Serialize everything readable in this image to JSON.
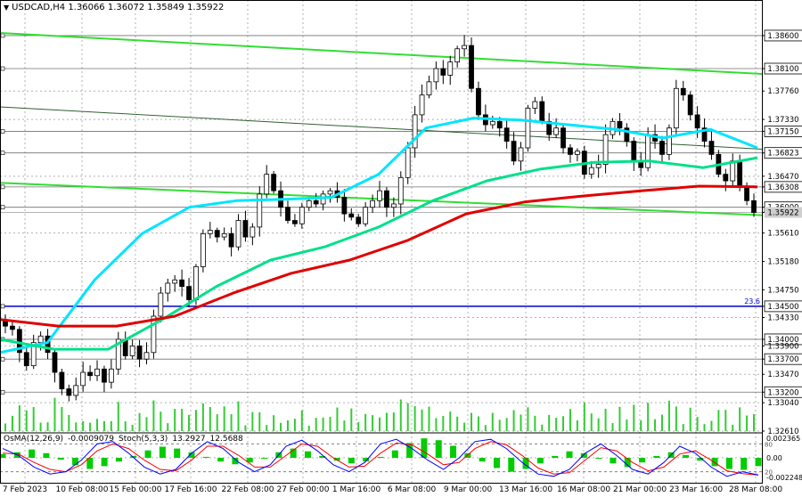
{
  "header": {
    "symbol": "USDCAD",
    "timeframe": "H4",
    "open": "1.36066",
    "high": "1.36072",
    "low": "1.35849",
    "close": "1.35922"
  },
  "oscillator": {
    "osma_label": "OsMA(12,26,9)",
    "osma_value": "-0.0009079",
    "stoch_label": "Stoch(5,3,3)",
    "stoch_k": "13.2927",
    "stoch_d": "12.5688",
    "axis_labels": [
      "0.002365",
      "0.00",
      "-0.002248"
    ],
    "stoch_levels": [
      "80",
      "20"
    ]
  },
  "colors": {
    "up_candle": "#000000",
    "down_candle": "#000000",
    "volume": "#33cc33",
    "osma": "#00cc00",
    "stoch_main": "#0000ff",
    "stoch_signal": "#ff0000",
    "ema_fast": "#00e5ff",
    "ema_mid": "#00e08a",
    "ema_slow": "#e00000",
    "channel": "#33dd33",
    "level_line": "#0000cc",
    "current_price_bg": "#cfcfcf"
  },
  "chart_data": {
    "type": "candlestick",
    "symbol": "USDCAD",
    "timeframe": "H4",
    "ylim": [
      1.3261,
      1.3895
    ],
    "y_ticks": [
      "1.38600",
      "1.38100",
      "1.37760",
      "1.37330",
      "1.37150",
      "1.36823",
      "1.36470",
      "1.36308",
      "1.36000",
      "1.35922",
      "1.35610",
      "1.35180",
      "1.34750",
      "1.34500",
      "1.34330",
      "1.34000",
      "1.33900",
      "1.33700",
      "1.33470",
      "1.33200",
      "1.33040",
      "1.32610"
    ],
    "highlighted_levels": [
      "1.38600",
      "1.38100",
      "1.37150",
      "1.36823",
      "1.36308",
      "1.36000",
      "1.34500",
      "1.34000",
      "1.33700",
      "1.33200"
    ],
    "current_price": "1.35922",
    "level_annotation": "23.6",
    "x_ticks": [
      "7 Feb 2023",
      "10 Feb 08:00",
      "15 Feb 00:00",
      "17 Feb 16:00",
      "22 Feb 08:00",
      "27 Feb 00:00",
      "1 Mar 16:00",
      "6 Mar 08:00",
      "9 Mar 00:00",
      "13 Mar 16:00",
      "16 Mar 08:00",
      "21 Mar 00:00",
      "23 Mar 16:00",
      "28 Mar 08:00"
    ],
    "close_path": [
      1.342,
      1.3415,
      1.338,
      1.336,
      1.3395,
      1.3405,
      1.338,
      1.335,
      1.3325,
      1.3315,
      1.333,
      1.335,
      1.3345,
      1.3355,
      1.3335,
      1.3355,
      1.34,
      1.3375,
      1.339,
      1.337,
      1.338,
      1.3435,
      1.347,
      1.3485,
      1.349,
      1.348,
      1.346,
      1.351,
      1.356,
      1.3565,
      1.3555,
      1.356,
      1.354,
      1.358,
      1.3555,
      1.357,
      1.362,
      1.365,
      1.3625,
      1.36,
      1.358,
      1.3575,
      1.36,
      1.361,
      1.3605,
      1.362,
      1.3625,
      1.3615,
      1.359,
      1.3585,
      1.3575,
      1.36,
      1.361,
      1.3625,
      1.36,
      1.3605,
      1.3645,
      1.369,
      1.374,
      1.377,
      1.379,
      1.381,
      1.38,
      1.382,
      1.384,
      1.3845,
      1.378,
      1.374,
      1.3725,
      1.373,
      1.372,
      1.37,
      1.367,
      1.369,
      1.375,
      1.376,
      1.373,
      1.371,
      1.372,
      1.369,
      1.368,
      1.3685,
      1.365,
      1.366,
      1.3665,
      1.371,
      1.373,
      1.372,
      1.37,
      1.367,
      1.366,
      1.371,
      1.37,
      1.368,
      1.372,
      1.378,
      1.377,
      1.374,
      1.372,
      1.37,
      1.368,
      1.365,
      1.364,
      1.367,
      1.363,
      1.361,
      1.3592
    ],
    "series": [
      {
        "name": "EMA fast",
        "values": [
          1.338,
          1.3395,
          1.349,
          1.356,
          1.36,
          1.361,
          1.3612,
          1.3615,
          1.365,
          1.372,
          1.3735,
          1.3732,
          1.3725,
          1.3718,
          1.3705,
          1.3718,
          1.369
        ]
      },
      {
        "name": "EMA mid",
        "values": [
          1.34,
          1.3385,
          1.3385,
          1.343,
          1.348,
          1.352,
          1.354,
          1.357,
          1.361,
          1.364,
          1.3658,
          1.3668,
          1.367,
          1.366,
          1.3675
        ]
      },
      {
        "name": "EMA slow",
        "values": [
          1.343,
          1.342,
          1.342,
          1.3435,
          1.347,
          1.35,
          1.352,
          1.355,
          1.359,
          1.3608,
          1.3617,
          1.3625,
          1.3632,
          1.3631
        ]
      }
    ],
    "oscillator": {
      "osma": [
        0.0004,
        0.0006,
        0.0009,
        0.0005,
        -0.0002,
        -0.0008,
        -0.0012,
        -0.0009,
        -0.0004,
        0.0002,
        0.0008,
        0.0012,
        0.001,
        0.0006,
        0.0001,
        -0.0004,
        -0.0007,
        -0.0005,
        0.0,
        0.0006,
        0.001,
        0.0007,
        0.0002,
        -0.0003,
        -0.0006,
        -0.0004,
        0.0001,
        0.0008,
        0.0016,
        0.0021,
        0.0019,
        0.0013,
        0.0005,
        -0.0004,
        -0.0011,
        -0.0015,
        -0.0012,
        -0.0006,
        0.0002,
        0.0007,
        0.0005,
        0.0,
        -0.0006,
        -0.001,
        -0.0005,
        0.0002,
        0.0006,
        0.0003,
        -0.0003,
        -0.0009,
        -0.0012,
        -0.0013,
        -0.0009
      ],
      "stoch_k": [
        70,
        55,
        30,
        15,
        20,
        45,
        80,
        85,
        60,
        30,
        15,
        25,
        60,
        85,
        70,
        40,
        20,
        35,
        75,
        88,
        65,
        35,
        20,
        40,
        80,
        90,
        70,
        45,
        25,
        50,
        85,
        90,
        70,
        40,
        15,
        10,
        25,
        60,
        80,
        55,
        25,
        15,
        40,
        75,
        60,
        30,
        10,
        20,
        13
      ],
      "stoch_d": [
        60,
        58,
        40,
        25,
        20,
        35,
        65,
        80,
        70,
        45,
        25,
        22,
        45,
        75,
        75,
        55,
        30,
        30,
        55,
        80,
        75,
        50,
        30,
        32,
        60,
        82,
        78,
        58,
        35,
        40,
        70,
        85,
        78,
        55,
        28,
        15,
        18,
        45,
        72,
        65,
        40,
        22,
        30,
        58,
        65,
        45,
        22,
        16,
        12.6
      ]
    }
  }
}
